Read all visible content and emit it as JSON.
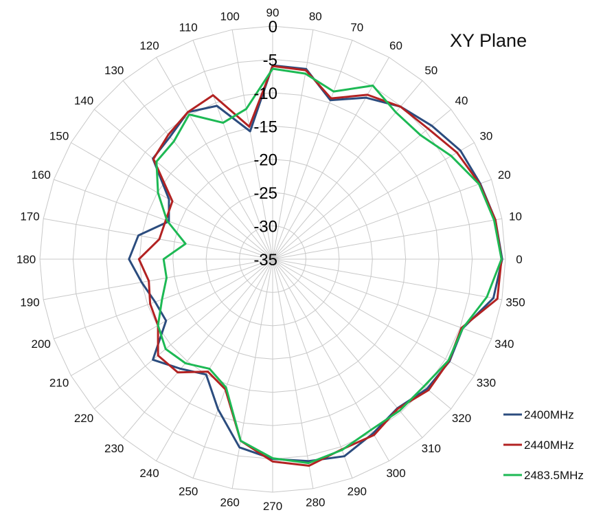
{
  "chart_data": {
    "type": "radar",
    "title": "XY Plane",
    "angles": [
      0,
      10,
      20,
      30,
      40,
      50,
      60,
      70,
      80,
      90,
      100,
      110,
      120,
      130,
      140,
      150,
      160,
      170,
      180,
      190,
      200,
      210,
      220,
      230,
      240,
      250,
      260,
      270,
      280,
      290,
      300,
      310,
      320,
      330,
      340,
      350
    ],
    "angle_labels": [
      "0",
      "10",
      "20",
      "30",
      "40",
      "50",
      "60",
      "70",
      "80",
      "90",
      "100",
      "110",
      "120",
      "130",
      "140",
      "150",
      "160",
      "170",
      "180",
      "190",
      "200",
      "210",
      "220",
      "230",
      "240",
      "250",
      "260",
      "270",
      "280",
      "290",
      "300",
      "310",
      "320",
      "330",
      "340",
      "350"
    ],
    "rlim": [
      -35,
      0
    ],
    "r_ticks": [
      0,
      -5,
      -10,
      -15,
      -20,
      -25,
      -30,
      -35
    ],
    "r_tick_labels": [
      "0",
      "-5",
      "-10",
      "-15",
      "-20",
      "-25",
      "-30",
      "-35"
    ],
    "grid": true,
    "legend_position": "bottom-right",
    "series": [
      {
        "name": "2400MHz",
        "color": "#2b4c7e",
        "values": [
          -0.5,
          -1.0,
          -1.8,
          -2.4,
          -3.8,
          -5.1,
          -7.0,
          -9.6,
          -6.0,
          -5.9,
          -15.5,
          -10.5,
          -9.5,
          -11.0,
          -11.5,
          -17.0,
          -18.4,
          -14.5,
          -13.4,
          -15.0,
          -16.2,
          -16.5,
          -11.5,
          -13.5,
          -15.0,
          -11.0,
          -6.3,
          -5.0,
          -4.2,
          -3.5,
          -4.8,
          -5.8,
          -4.7,
          -4.3,
          -4.6,
          -1.3
        ]
      },
      {
        "name": "2440MHz",
        "color": "#b22222",
        "values": [
          -0.6,
          -1.0,
          -1.9,
          -3.0,
          -4.5,
          -5.1,
          -6.5,
          -9.3,
          -6.2,
          -6.0,
          -14.8,
          -8.8,
          -9.5,
          -10.6,
          -11.6,
          -17.6,
          -17.9,
          -17.7,
          -14.9,
          -16.1,
          -15.4,
          -15.1,
          -12.5,
          -12.8,
          -15.5,
          -14.2,
          -7.3,
          -4.6,
          -3.5,
          -4.6,
          -4.5,
          -5.7,
          -4.4,
          -4.4,
          -4.8,
          -0.7
        ]
      },
      {
        "name": "2483.5MHz",
        "color": "#1db954",
        "values": [
          -0.6,
          -1.2,
          -2.0,
          -4.0,
          -6.0,
          -6.2,
          -4.9,
          -8.2,
          -6.7,
          -6.4,
          -12.1,
          -13.2,
          -9.9,
          -11.9,
          -12.2,
          -15.1,
          -18.1,
          -21.7,
          -18.6,
          -18.8,
          -17.3,
          -15.1,
          -14.0,
          -14.6,
          -16.0,
          -14.5,
          -7.3,
          -5.1,
          -3.9,
          -4.5,
          -5.4,
          -5.3,
          -5.3,
          -4.5,
          -4.6,
          -2.3
        ]
      }
    ]
  }
}
